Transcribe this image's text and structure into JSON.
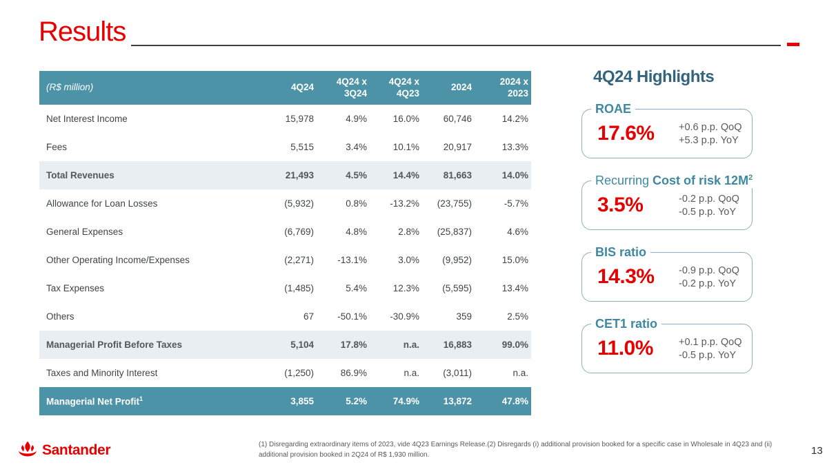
{
  "page": {
    "title": "Results",
    "page_number": "13",
    "footnote": "(1) Disregarding extraordinary items of 2023, vide 4Q23 Earnings Release.(2) Disregards (i) additional provision booked for a specific case in Wholesale in 4Q23 and (ii) additional provision booked in 2Q24 of R$ 1,930 million.",
    "logo_text": "Santander"
  },
  "colors": {
    "brand_red": "#e60000",
    "table_teal": "#4d93a8",
    "row_highlight": "#e9eef2",
    "highlights_title": "#33647e",
    "card_label_teal": "#3e88a0",
    "card_border": "#8fadbd",
    "muted_text": "#595959"
  },
  "table": {
    "unit_label": "(R$ million)",
    "columns": [
      "4Q24",
      "4Q24 x\n3Q24",
      "4Q24 x\n4Q23",
      "2024",
      "2024 x\n2023"
    ],
    "rows": [
      {
        "label": "Net Interest Income",
        "label_sup": "",
        "values": [
          "15,978",
          "4.9%",
          "16.0%",
          "60,746",
          "14.2%"
        ],
        "style": "normal"
      },
      {
        "label": "Fees",
        "label_sup": "",
        "values": [
          "5,515",
          "3.4%",
          "10.1%",
          "20,917",
          "13.3%"
        ],
        "style": "normal"
      },
      {
        "label": "Total Revenues",
        "label_sup": "",
        "values": [
          "21,493",
          "4.5%",
          "14.4%",
          "81,663",
          "14.0%"
        ],
        "style": "subtotal"
      },
      {
        "label": "Allowance for Loan Losses",
        "label_sup": "",
        "values": [
          "(5,932)",
          "0.8%",
          "-13.2%",
          "(23,755)",
          "-5.7%"
        ],
        "style": "normal"
      },
      {
        "label": "General Expenses",
        "label_sup": "",
        "values": [
          "(6,769)",
          "4.8%",
          "2.8%",
          "(25,837)",
          "4.6%"
        ],
        "style": "normal"
      },
      {
        "label": "Other Operating Income/Expenses",
        "label_sup": "",
        "values": [
          "(2,271)",
          "-13.1%",
          "3.0%",
          "(9,952)",
          "15.0%"
        ],
        "style": "normal"
      },
      {
        "label": "Tax Expenses",
        "label_sup": "",
        "values": [
          "(1,485)",
          "5.4%",
          "12.3%",
          "(5,595)",
          "13.4%"
        ],
        "style": "normal"
      },
      {
        "label": "Others",
        "label_sup": "",
        "values": [
          "67",
          "-50.1%",
          "-30.9%",
          "359",
          "2.5%"
        ],
        "style": "normal"
      },
      {
        "label": "Managerial Profit Before Taxes",
        "label_sup": "",
        "values": [
          "5,104",
          "17.8%",
          "n.a.",
          "16,883",
          "99.0%"
        ],
        "style": "subtotal"
      },
      {
        "label": "Taxes and Minority Interest",
        "label_sup": "",
        "values": [
          "(1,250)",
          "86.9%",
          "n.a.",
          "(3,011)",
          "n.a."
        ],
        "style": "normal"
      },
      {
        "label": "Managerial Net Profit",
        "label_sup": "1",
        "values": [
          "3,855",
          "5.2%",
          "74.9%",
          "13,872",
          "47.8%"
        ],
        "style": "total"
      }
    ]
  },
  "highlights": {
    "title": "4Q24 Highlights",
    "cards": [
      {
        "label_prefix": "",
        "label": "ROAE",
        "label_sup": "",
        "value": "17.6%",
        "change_qoq": "+0.6 p.p. QoQ",
        "change_yoy": "+5.3 p.p. YoY"
      },
      {
        "label_prefix": "Recurring",
        "label": "Cost of risk 12M",
        "label_sup": "2",
        "value": "3.5%",
        "change_qoq": "-0.2 p.p. QoQ",
        "change_yoy": "-0.5 p.p. YoY"
      },
      {
        "label_prefix": "",
        "label": "BIS ratio",
        "label_sup": "",
        "value": "14.3%",
        "change_qoq": "-0.9 p.p. QoQ",
        "change_yoy": "-0.2 p.p. YoY"
      },
      {
        "label_prefix": "",
        "label": "CET1 ratio",
        "label_sup": "",
        "value": "11.0%",
        "change_qoq": "+0.1 p.p. QoQ",
        "change_yoy": "-0.5 p.p. YoY"
      }
    ]
  }
}
